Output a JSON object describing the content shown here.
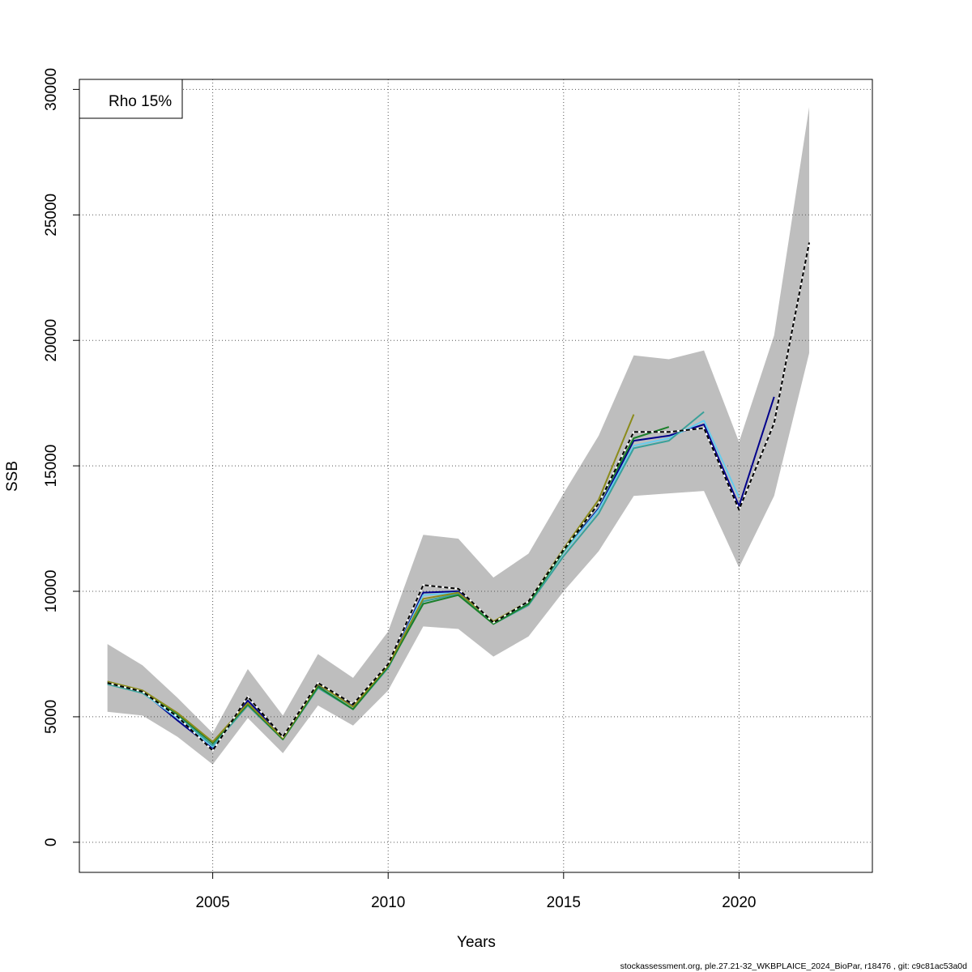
{
  "chart_data": {
    "type": "line",
    "xlabel": "Years",
    "ylabel": "SSB",
    "xlim": [
      2001.2,
      2023.8
    ],
    "ylim": [
      -1200,
      30400
    ],
    "x_ticks": [
      2005,
      2010,
      2015,
      2020
    ],
    "y_ticks": [
      0,
      5000,
      10000,
      15000,
      20000,
      25000,
      30000
    ],
    "grid": true,
    "legend": {
      "position": "top-left",
      "text": "Rho 15%"
    },
    "footer": "stockassessment.org, ple.27.21-32_WKBPLAICE_2024_BioPar, r18476 , git: c9c81ac53a0d",
    "colors": {
      "band": "#bebebe",
      "grid": "#555555",
      "base_line": "#000000"
    },
    "confidence_band": {
      "x": [
        2002,
        2003,
        2004,
        2005,
        2006,
        2007,
        2008,
        2009,
        2010,
        2011,
        2012,
        2013,
        2014,
        2015,
        2016,
        2017,
        2018,
        2019,
        2020,
        2021,
        2022
      ],
      "lower": [
        5200,
        5050,
        4200,
        3100,
        4950,
        3550,
        5450,
        4650,
        6050,
        8600,
        8500,
        7400,
        8200,
        10000,
        11600,
        13800,
        13900,
        14000,
        10950,
        13800,
        19500
      ],
      "upper": [
        7900,
        7050,
        5750,
        4350,
        6900,
        5050,
        7500,
        6550,
        8400,
        12250,
        12100,
        10550,
        11500,
        13900,
        16200,
        19400,
        19250,
        19600,
        15950,
        20200,
        29300
      ]
    },
    "series": [
      {
        "color": "#00008b",
        "x": [
          2002,
          2003,
          2004,
          2005,
          2006,
          2007,
          2008,
          2009,
          2010,
          2011,
          2012,
          2013,
          2014,
          2015,
          2016,
          2017,
          2018,
          2019,
          2020,
          2021
        ],
        "values": [
          6400,
          6000,
          4850,
          3750,
          5650,
          4200,
          6250,
          5450,
          7000,
          9950,
          10000,
          8750,
          9500,
          11600,
          13300,
          16000,
          16200,
          16650,
          13400,
          17750
        ]
      },
      {
        "color": "#66ccee",
        "x": [
          2002,
          2003,
          2004,
          2005,
          2006,
          2007,
          2008,
          2009,
          2010,
          2011,
          2012,
          2013,
          2014,
          2015,
          2016,
          2017,
          2018,
          2019,
          2020
        ],
        "values": [
          6300,
          5950,
          4950,
          3800,
          5500,
          4150,
          6200,
          5400,
          7000,
          9850,
          9950,
          8750,
          9500,
          11550,
          13250,
          15800,
          16100,
          16800,
          13750
        ]
      },
      {
        "color": "#3aa19a",
        "x": [
          2002,
          2003,
          2004,
          2005,
          2006,
          2007,
          2008,
          2009,
          2010,
          2011,
          2012,
          2013,
          2014,
          2015,
          2016,
          2017,
          2018,
          2019
        ],
        "values": [
          6300,
          5950,
          5050,
          3850,
          5450,
          4100,
          6150,
          5300,
          6950,
          9600,
          9900,
          8700,
          9450,
          11400,
          13100,
          15700,
          16000,
          17150
        ]
      },
      {
        "color": "#1a7f2a",
        "x": [
          2002,
          2003,
          2004,
          2005,
          2006,
          2007,
          2008,
          2009,
          2010,
          2011,
          2012,
          2013,
          2014,
          2015,
          2016,
          2017,
          2018
        ],
        "values": [
          6350,
          6000,
          5100,
          3950,
          5500,
          4100,
          6200,
          5300,
          7000,
          9500,
          9850,
          8700,
          9500,
          11600,
          13500,
          16100,
          16550
        ]
      },
      {
        "color": "#8b8b1a",
        "x": [
          2002,
          2003,
          2004,
          2005,
          2006,
          2007,
          2008,
          2009,
          2010,
          2011,
          2012,
          2013,
          2014,
          2015,
          2016,
          2017
        ],
        "values": [
          6400,
          6050,
          5150,
          4000,
          5550,
          4150,
          6300,
          5400,
          7050,
          9700,
          9950,
          8800,
          9600,
          11700,
          13650,
          17050
        ]
      },
      {
        "color": "#000000",
        "dashed": true,
        "base": true,
        "x": [
          2002,
          2003,
          2004,
          2005,
          2006,
          2007,
          2008,
          2009,
          2010,
          2011,
          2012,
          2013,
          2014,
          2015,
          2016,
          2017,
          2018,
          2019,
          2020,
          2021,
          2022
        ],
        "values": [
          6350,
          6000,
          5000,
          3650,
          5800,
          4200,
          6350,
          5500,
          7100,
          10250,
          10100,
          8750,
          9600,
          11650,
          13500,
          16350,
          16350,
          16500,
          13250,
          16700,
          23900
        ]
      }
    ]
  }
}
